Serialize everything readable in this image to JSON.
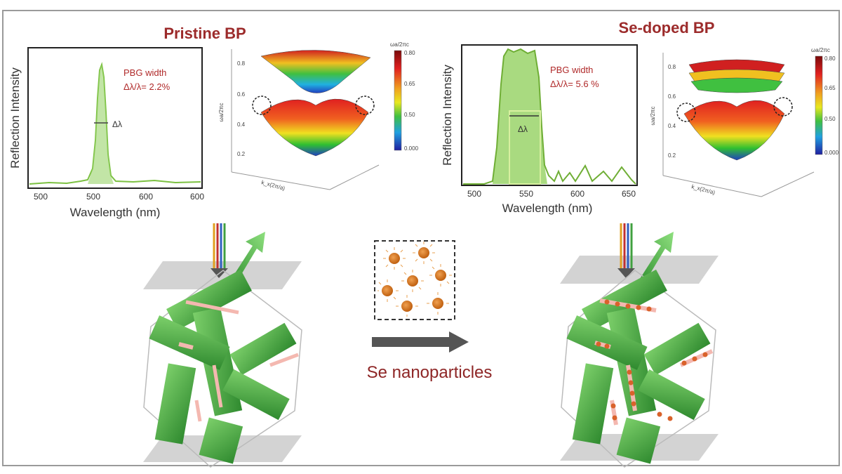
{
  "panels": {
    "left": {
      "title": "Pristine BP",
      "ylabel": "Reflection Intensity",
      "xlabel": "Wavelength (nm)",
      "xticks": [
        "500",
        "500",
        "600",
        "600"
      ],
      "pbg_line1": "PBG width",
      "pbg_line2": "Δλ/λ= 2.2%",
      "delta_label": "Δλ",
      "band_zlabel": "ωa/2πc",
      "band_zticks": [
        "0.8",
        "0.6",
        "0.4",
        "0.2"
      ],
      "band_klabel": "k_x(2π/a)",
      "colorbar_title": "ωa/2πc",
      "colorbar_ticks": [
        "0.80",
        "0.65",
        "0.50",
        "0.000"
      ]
    },
    "right": {
      "title": "Se-doped BP",
      "ylabel": "Reflection Intensity",
      "xlabel": "Wavelength (nm)",
      "xticks": [
        "500",
        "550",
        "600",
        "650"
      ],
      "pbg_line1": "PBG width",
      "pbg_line2": "Δλ/λ= 5.6 %",
      "delta_label": "Δλ",
      "band_zlabel": "ωa/2πc",
      "band_zticks": [
        "0.8",
        "0.6",
        "0.4",
        "0.2"
      ],
      "band_klabel": "k_x(2π/a)",
      "colorbar_title": "ωa/2πc",
      "colorbar_ticks": [
        "0.80",
        "0.65",
        "0.50",
        "0.000"
      ]
    }
  },
  "center": {
    "process_label": "Se nanoparticles"
  },
  "colors": {
    "title_red": "#9c2b2b",
    "spectrum_green": "#7cc142",
    "helix_green": "#3c9a3c",
    "nanoparticle_orange": "#d9822b",
    "arrow_gray": "#555555"
  }
}
